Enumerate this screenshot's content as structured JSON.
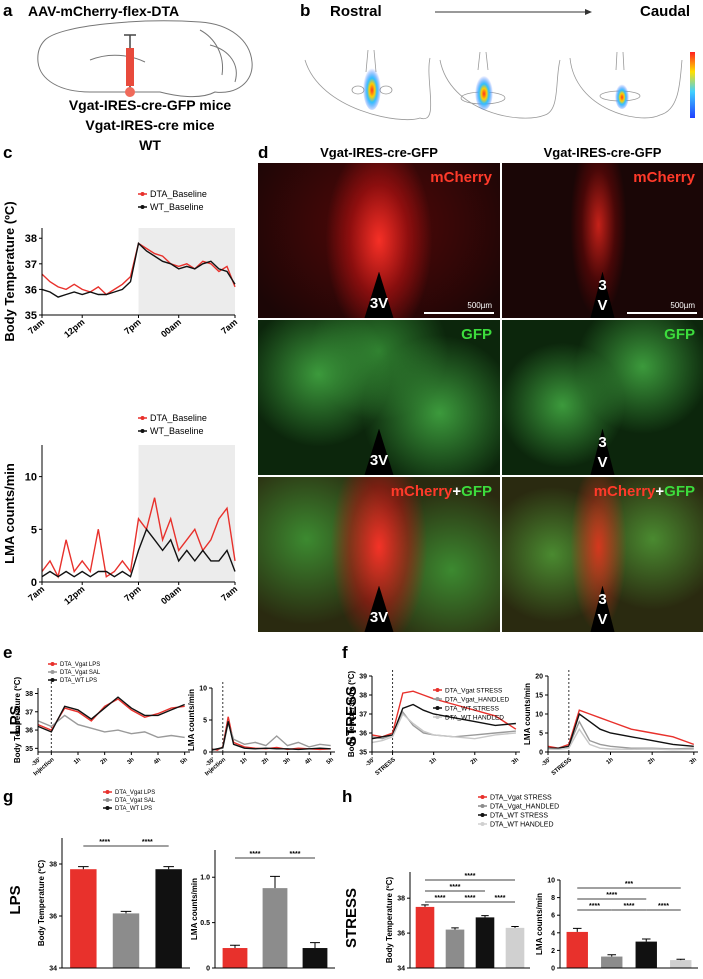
{
  "panel_a": {
    "letter": "a",
    "virus": "AAV-mCherry-flex-DTA",
    "mice": [
      "Vgat-IRES-cre-GFP mice",
      "Vgat-IRES-cre mice",
      "WT"
    ]
  },
  "panel_b": {
    "letter": "b",
    "from": "Rostral",
    "to": "Caudal"
  },
  "panel_c": {
    "letter": "c"
  },
  "panel_d": {
    "letter": "d",
    "columns": [
      "Vgat-IRES-cre-GFP",
      "Vgat-IRES-cre-GFP"
    ],
    "red": "mCherry",
    "green": "GFP",
    "plus": "+",
    "ventricle": "3V",
    "ventricle_split": [
      "3",
      "V"
    ],
    "scale_bar": "500µm"
  },
  "panel_e": {
    "letter": "e",
    "condition": "LPS"
  },
  "panel_f": {
    "letter": "f",
    "condition": "STRESS"
  },
  "panel_g": {
    "letter": "g",
    "condition": "LPS"
  },
  "panel_h": {
    "letter": "h",
    "condition": "STRESS"
  },
  "chart_data": [
    {
      "type": "line",
      "ylabel": "Body Temperature (ºC)",
      "x": [
        0,
        1,
        2,
        3,
        4,
        5,
        6,
        7,
        8,
        9,
        10,
        11,
        12,
        13,
        14,
        15,
        16,
        17,
        18,
        19,
        20,
        21,
        22,
        23,
        24
      ],
      "xlim": [
        0,
        24
      ],
      "xticks": [
        {
          "value": 0,
          "label": "7am"
        },
        {
          "value": 5,
          "label": "12pm"
        },
        {
          "value": 12,
          "label": "7pm"
        },
        {
          "value": 17,
          "label": "00am"
        },
        {
          "value": 24,
          "label": "7am"
        }
      ],
      "ylim": [
        35,
        38.4
      ],
      "yticks": [
        35,
        36,
        37,
        38
      ],
      "shade": [
        12,
        24
      ],
      "series": [
        {
          "name": "DTA_Baseline",
          "color": "#e8312c",
          "values": [
            36.6,
            36.3,
            36.1,
            36.0,
            36.2,
            36.0,
            35.9,
            36.1,
            35.8,
            36.0,
            36.2,
            36.5,
            37.8,
            37.6,
            37.4,
            37.3,
            37.0,
            36.9,
            37.0,
            36.8,
            37.1,
            37.0,
            36.7,
            36.9,
            36.1
          ]
        },
        {
          "name": "WT_Baseline",
          "color": "#111111",
          "values": [
            36.0,
            35.9,
            35.7,
            35.8,
            35.9,
            35.8,
            35.9,
            35.8,
            35.8,
            35.9,
            36.0,
            36.3,
            37.8,
            37.5,
            37.3,
            37.1,
            37.0,
            36.8,
            36.9,
            36.8,
            37.0,
            37.1,
            36.8,
            36.7,
            36.2
          ]
        }
      ]
    },
    {
      "type": "line",
      "ylabel": "LMA counts/min",
      "x": [
        0,
        1,
        2,
        3,
        4,
        5,
        6,
        7,
        8,
        9,
        10,
        11,
        12,
        13,
        14,
        15,
        16,
        17,
        18,
        19,
        20,
        21,
        22,
        23,
        24
      ],
      "xlim": [
        0,
        24
      ],
      "xticks": [
        {
          "value": 0,
          "label": "7am"
        },
        {
          "value": 5,
          "label": "12pm"
        },
        {
          "value": 12,
          "label": "7pm"
        },
        {
          "value": 17,
          "label": "00am"
        },
        {
          "value": 24,
          "label": "7am"
        }
      ],
      "ylim": [
        0,
        13
      ],
      "yticks": [
        0,
        5,
        10
      ],
      "shade": [
        12,
        24
      ],
      "series": [
        {
          "name": "DTA_Baseline",
          "color": "#e8312c",
          "values": [
            1,
            2,
            0.5,
            4,
            1,
            2,
            1,
            5,
            0.5,
            1,
            2,
            1,
            6,
            5,
            8,
            4,
            6,
            3,
            4,
            5,
            3,
            4,
            6,
            7,
            2
          ]
        },
        {
          "name": "WT_Baseline",
          "color": "#111111",
          "values": [
            0.5,
            1,
            0.5,
            1,
            0.5,
            1,
            0.5,
            1,
            1,
            0.5,
            1,
            0.5,
            3,
            5,
            4,
            3,
            4,
            2,
            3,
            2,
            3,
            2,
            2,
            3,
            1
          ]
        }
      ]
    },
    {
      "type": "line",
      "ylabel": "Body Temperature (ºC)",
      "x": [
        -0.5,
        0,
        0.5,
        1,
        1.5,
        2,
        2.5,
        3,
        3.5,
        4,
        4.5,
        5
      ],
      "xlim": [
        -0.5,
        5.2
      ],
      "xticks": [
        {
          "value": -0.5,
          "label": "-30'"
        },
        {
          "value": 0,
          "label": "Injection"
        },
        {
          "value": 1,
          "label": "1h"
        },
        {
          "value": 2,
          "label": "2h"
        },
        {
          "value": 3,
          "label": "3h"
        },
        {
          "value": 4,
          "label": "4h"
        },
        {
          "value": 5,
          "label": "5h"
        }
      ],
      "ylim": [
        34.8,
        38.3
      ],
      "yticks": [
        35,
        36,
        37,
        38
      ],
      "vline": 0,
      "series": [
        {
          "name": "DTA_Vgat LPS",
          "color": "#e8312c",
          "values": [
            36.3,
            36.0,
            37.2,
            37.0,
            36.5,
            37.3,
            37.7,
            37.1,
            36.7,
            36.9,
            37.2,
            37.3
          ]
        },
        {
          "name": "DTA_Vgat SAL",
          "color": "#9a9a9a",
          "values": [
            36.5,
            36.2,
            36.8,
            36.3,
            36.1,
            35.9,
            36.0,
            35.8,
            35.9,
            35.6,
            35.7,
            35.6
          ]
        },
        {
          "name": "DTA_WT LPS",
          "color": "#111111",
          "values": [
            36.2,
            35.9,
            37.3,
            37.1,
            36.6,
            37.2,
            37.8,
            37.2,
            36.8,
            36.8,
            37.1,
            37.4
          ]
        }
      ]
    },
    {
      "type": "line",
      "ylabel": "LMA counts/min",
      "x": [
        -0.5,
        -0.25,
        0,
        0.25,
        0.5,
        1,
        1.5,
        2,
        2.5,
        3,
        3.5,
        4,
        4.5,
        5
      ],
      "xlim": [
        -0.5,
        5.2
      ],
      "xticks": [
        {
          "value": -0.5,
          "label": "-30'"
        },
        {
          "value": 0,
          "label": "Injection"
        },
        {
          "value": 1,
          "label": "1h"
        },
        {
          "value": 2,
          "label": "2h"
        },
        {
          "value": 3,
          "label": "3h"
        },
        {
          "value": 4,
          "label": "4h"
        },
        {
          "value": 5,
          "label": "5h"
        }
      ],
      "ylim": [
        0,
        10
      ],
      "yticks": [
        0,
        5,
        10
      ],
      "vline": 0,
      "series": [
        {
          "color": "#e8312c",
          "values": [
            0.5,
            0.3,
            0.8,
            5.5,
            1.5,
            0.8,
            0.6,
            0.5,
            0.7,
            0.4,
            0.6,
            0.5,
            0.4,
            0.5
          ]
        },
        {
          "color": "#9a9a9a",
          "values": [
            0.4,
            0.5,
            0.6,
            4.5,
            2.0,
            1.2,
            1.5,
            1.0,
            2.5,
            1.0,
            1.5,
            0.8,
            1.2,
            1.0
          ]
        },
        {
          "color": "#111111",
          "values": [
            0.3,
            0.5,
            0.7,
            4.8,
            1.2,
            0.6,
            0.5,
            0.6,
            0.5,
            0.5,
            0.4,
            0.5,
            0.6,
            0.5
          ]
        }
      ]
    },
    {
      "type": "line",
      "ylabel": "Body Temperature (ºC)",
      "x": [
        -0.5,
        -0.25,
        0,
        0.25,
        0.5,
        0.75,
        1,
        1.5,
        2,
        2.5,
        3
      ],
      "xlim": [
        -0.5,
        3.1
      ],
      "xticks": [
        {
          "value": -0.5,
          "label": "-30'"
        },
        {
          "value": 0,
          "label": "STRESS"
        },
        {
          "value": 1,
          "label": "1h"
        },
        {
          "value": 2,
          "label": "2h"
        },
        {
          "value": 3,
          "label": "3h"
        }
      ],
      "ylim": [
        35,
        39
      ],
      "yticks": [
        35,
        36,
        37,
        38,
        39
      ],
      "vline": 0,
      "series": [
        {
          "name": "DTA_Vgat STRESS",
          "color": "#e8312c",
          "values": [
            35.9,
            35.8,
            36.0,
            38.1,
            38.2,
            38.0,
            37.8,
            37.5,
            37.2,
            36.9,
            36.2
          ]
        },
        {
          "name": "DTA_Vgat_HANDLED",
          "color": "#9a9a9a",
          "values": [
            35.8,
            35.7,
            35.9,
            37.1,
            36.4,
            36.0,
            35.9,
            35.8,
            35.9,
            36.0,
            36.1
          ]
        },
        {
          "name": "DTA_WT STRESS",
          "color": "#111111",
          "values": [
            35.7,
            35.8,
            35.9,
            37.3,
            37.5,
            37.2,
            37.0,
            36.8,
            36.6,
            36.4,
            36.5
          ]
        },
        {
          "name": "DTA_WT HANDLED",
          "color": "#c8c8c8",
          "values": [
            35.5,
            35.6,
            35.8,
            37.0,
            36.5,
            36.1,
            35.9,
            35.8,
            35.7,
            35.9,
            36.0
          ]
        }
      ]
    },
    {
      "type": "line",
      "ylabel": "LMA counts/min",
      "x": [
        -0.5,
        -0.25,
        0,
        0.25,
        0.5,
        0.75,
        1,
        1.5,
        2,
        2.5,
        3
      ],
      "xlim": [
        -0.5,
        3.1
      ],
      "xticks": [
        {
          "value": -0.5,
          "label": "-30'"
        },
        {
          "value": 0,
          "label": "STRESS"
        },
        {
          "value": 1,
          "label": "1h"
        },
        {
          "value": 2,
          "label": "2h"
        },
        {
          "value": 3,
          "label": "3h"
        }
      ],
      "ylim": [
        0,
        20
      ],
      "yticks": [
        0,
        5,
        10,
        15,
        20
      ],
      "vline": 0,
      "series": [
        {
          "color": "#e8312c",
          "values": [
            1.5,
            1,
            2,
            11,
            10,
            9,
            8,
            6,
            5,
            4,
            2
          ]
        },
        {
          "color": "#9a9a9a",
          "values": [
            1,
            1,
            1.5,
            8,
            3,
            2,
            1.5,
            1,
            1,
            0.8,
            1
          ]
        },
        {
          "color": "#111111",
          "values": [
            1,
            1,
            1.5,
            10,
            8,
            6,
            5,
            4,
            3,
            2,
            1.5
          ]
        },
        {
          "color": "#c8c8c8",
          "values": [
            0.8,
            0.7,
            1,
            6,
            2,
            1,
            0.8,
            0.7,
            0.8,
            0.6,
            0.7
          ]
        }
      ]
    },
    {
      "type": "bar",
      "ylabel": "Body Temperature (ºC)",
      "legend": [
        "DTA_Vgat LPS",
        "DTA_Vgat SAL",
        "DTA_WT LPS"
      ],
      "colors": [
        "#e8312c",
        "#8c8c8c",
        "#111111"
      ],
      "values": [
        37.8,
        36.1,
        37.8
      ],
      "errors": [
        0.1,
        0.08,
        0.1
      ],
      "ylim": [
        34,
        39
      ],
      "yticks": [
        34,
        36,
        38
      ],
      "sig": [
        {
          "from": 0,
          "to": 1,
          "label": "****"
        },
        {
          "from": 1,
          "to": 2,
          "label": "****"
        }
      ]
    },
    {
      "type": "bar",
      "ylabel": "LMA counts/min",
      "colors": [
        "#e8312c",
        "#8c8c8c",
        "#111111"
      ],
      "values": [
        0.22,
        0.88,
        0.22
      ],
      "errors": [
        0.03,
        0.13,
        0.06
      ],
      "ylim": [
        0,
        1.3
      ],
      "yticks": [
        0,
        0.5,
        {
          "value": 1,
          "label": "1.0"
        }
      ],
      "sig": [
        {
          "from": 0,
          "to": 1,
          "label": "****"
        },
        {
          "from": 1,
          "to": 2,
          "label": "****"
        }
      ]
    },
    {
      "type": "bar",
      "ylabel": "Body Temperature (ºC)",
      "legend": [
        "DTA_Vgat STRESS",
        "DTA_Vgat_HANDLED",
        "DTA_WT STRESS",
        "DTA_WT HANDLED"
      ],
      "colors": [
        "#e8312c",
        "#8c8c8c",
        "#111111",
        "#d0d0d0"
      ],
      "values": [
        37.5,
        36.2,
        36.9,
        36.3
      ],
      "errors": [
        0.12,
        0.1,
        0.1,
        0.08
      ],
      "ylim": [
        34,
        39.5
      ],
      "yticks": [
        34,
        36,
        38
      ],
      "sig": [
        {
          "from": 0,
          "to": 3,
          "label": "****"
        },
        {
          "from": 0,
          "to": 2,
          "label": "****"
        },
        {
          "from": 0,
          "to": 1,
          "label": "****"
        },
        {
          "from": 1,
          "to": 2,
          "label": "****"
        },
        {
          "from": 2,
          "to": 3,
          "label": "****"
        }
      ]
    },
    {
      "type": "bar",
      "ylabel": "LMA counts/min",
      "colors": [
        "#e8312c",
        "#8c8c8c",
        "#111111",
        "#d0d0d0"
      ],
      "values": [
        4.1,
        1.3,
        3.0,
        0.9
      ],
      "errors": [
        0.4,
        0.2,
        0.3,
        0.1
      ],
      "ylim": [
        0,
        10
      ],
      "yticks": [
        0,
        2,
        4,
        6,
        8,
        10
      ],
      "sig": [
        {
          "from": 0,
          "to": 3,
          "label": "***"
        },
        {
          "from": 0,
          "to": 2,
          "label": "****"
        },
        {
          "from": 0,
          "to": 1,
          "label": "****"
        },
        {
          "from": 1,
          "to": 2,
          "label": "****"
        },
        {
          "from": 2,
          "to": 3,
          "label": "****"
        }
      ]
    }
  ]
}
